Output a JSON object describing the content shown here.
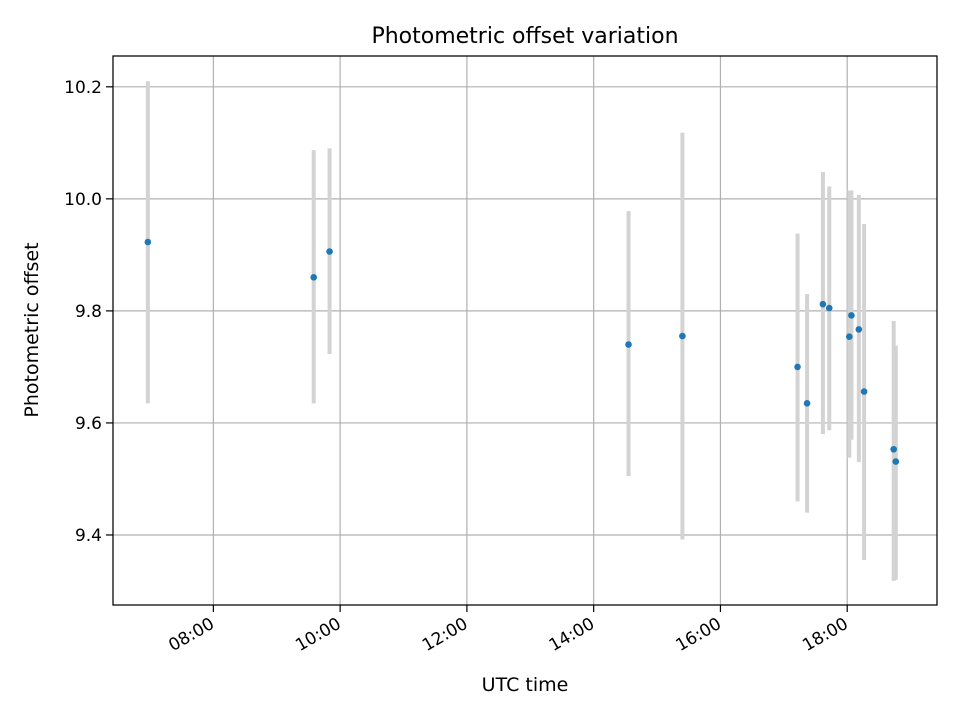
{
  "chart_data": {
    "type": "scatter",
    "title": "Photometric offset variation",
    "xlabel": "UTC time",
    "ylabel": "Photometric offset",
    "x_ticks": [
      "08:00",
      "10:00",
      "12:00",
      "14:00",
      "16:00",
      "18:00"
    ],
    "y_ticks": [
      "9.4",
      "9.6",
      "9.8",
      "10.0",
      "10.2"
    ],
    "xlim": [
      "06:25",
      "19:25"
    ],
    "ylim": [
      9.275,
      10.255
    ],
    "grid": true,
    "marker_color": "#1f77b4",
    "errorbar_color": "#d3d3d3",
    "points": [
      {
        "x": "06:58",
        "y": 9.923,
        "ylow": 9.635,
        "yhigh": 10.21
      },
      {
        "x": "09:35",
        "y": 9.86,
        "ylow": 9.635,
        "yhigh": 10.087
      },
      {
        "x": "09:50",
        "y": 9.906,
        "ylow": 9.723,
        "yhigh": 10.09
      },
      {
        "x": "14:33",
        "y": 9.74,
        "ylow": 9.505,
        "yhigh": 9.978
      },
      {
        "x": "15:24",
        "y": 9.755,
        "ylow": 9.392,
        "yhigh": 10.118
      },
      {
        "x": "17:13",
        "y": 9.7,
        "ylow": 9.46,
        "yhigh": 9.938
      },
      {
        "x": "17:22",
        "y": 9.635,
        "ylow": 9.44,
        "yhigh": 9.83
      },
      {
        "x": "17:37",
        "y": 9.812,
        "ylow": 9.58,
        "yhigh": 10.048
      },
      {
        "x": "17:43",
        "y": 9.805,
        "ylow": 9.587,
        "yhigh": 10.022
      },
      {
        "x": "18:02",
        "y": 9.754,
        "ylow": 9.538,
        "yhigh": 10.015
      },
      {
        "x": "18:04",
        "y": 9.792,
        "ylow": 9.57,
        "yhigh": 10.015
      },
      {
        "x": "18:11",
        "y": 9.767,
        "ylow": 9.53,
        "yhigh": 10.007
      },
      {
        "x": "18:16",
        "y": 9.656,
        "ylow": 9.355,
        "yhigh": 9.955
      },
      {
        "x": "18:44",
        "y": 9.553,
        "ylow": 9.318,
        "yhigh": 9.782
      },
      {
        "x": "18:46",
        "y": 9.531,
        "ylow": 9.32,
        "yhigh": 9.738
      }
    ]
  }
}
